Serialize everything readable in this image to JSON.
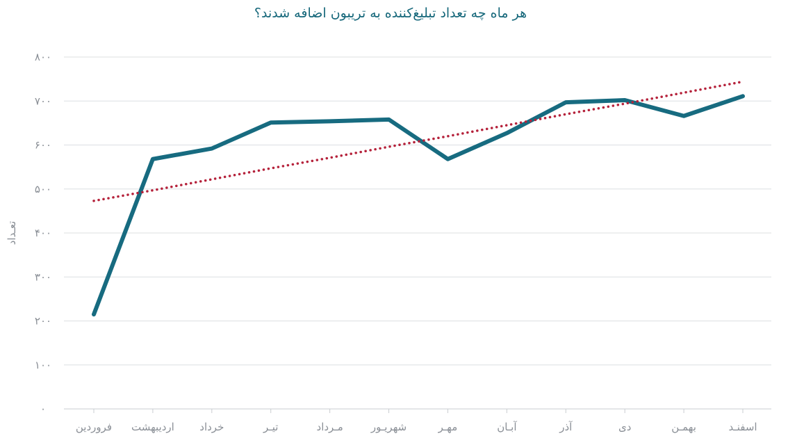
{
  "chart_data": {
    "type": "line",
    "title": "هر ماه چه تعداد تبلیغ‌کننده به تریبون اضافه شدند؟",
    "xlabel": "",
    "ylabel": "تعـداد",
    "ylim": [
      0,
      800
    ],
    "yticks": [
      0,
      100,
      200,
      300,
      400,
      500,
      600,
      700,
      800
    ],
    "ytick_labels": [
      "۰",
      "۱۰۰",
      "۲۰۰",
      "۳۰۰",
      "۴۰۰",
      "۵۰۰",
      "۶۰۰",
      "۷۰۰",
      "۸۰۰"
    ],
    "categories": [
      "فروردین",
      "اردیبهشت",
      "خرداد",
      "تیـر",
      "مـرداد",
      "شهریـور",
      "مهـر",
      "آبـان",
      "آذر",
      "دی",
      "بهمـن",
      "اسفنـد"
    ],
    "series": [
      {
        "values": [
          215,
          568,
          592,
          651,
          654,
          658,
          568,
          627,
          697,
          702,
          666,
          711
        ],
        "color": "#176b80"
      },
      {
        "values": [
          473,
          497,
          522,
          547,
          571,
          596,
          620,
          645,
          670,
          694,
          719,
          744
        ],
        "color": "#b5223b",
        "style": "dotted",
        "role": "trendline"
      }
    ],
    "grid": true
  }
}
